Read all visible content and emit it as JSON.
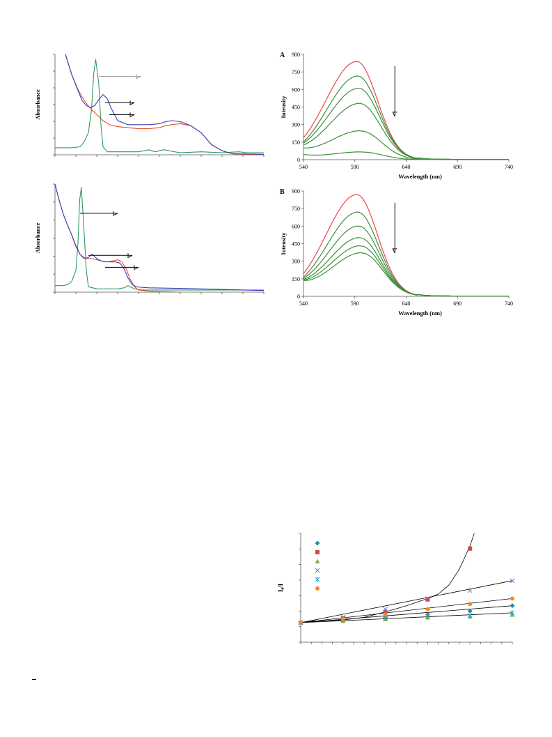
{
  "chart_data": [
    {
      "id": "uv1",
      "type": "line",
      "ylabel": "Absorbance",
      "xlim": [
        0,
        100
      ],
      "ylim": [
        0,
        100
      ],
      "series": [
        {
          "color": "#2e9a62",
          "x": [
            0,
            8,
            12,
            14,
            16,
            17.5,
            18.5,
            19.5,
            21,
            22,
            23,
            25,
            30,
            40,
            45,
            48,
            52,
            60,
            70,
            80,
            88,
            92,
            100
          ],
          "y": [
            7,
            7,
            8,
            13,
            22,
            45,
            80,
            95,
            70,
            30,
            8,
            3,
            3,
            3,
            5,
            3,
            5,
            2,
            3,
            2,
            3,
            2,
            2
          ]
        },
        {
          "color": "#e8502a",
          "x": [
            5,
            8,
            11,
            14,
            17,
            20,
            23,
            26,
            30,
            35,
            40,
            45,
            50,
            53,
            56,
            60,
            65,
            70,
            75,
            80,
            85,
            90,
            100
          ],
          "y": [
            100,
            80,
            65,
            54,
            46,
            40,
            34,
            30,
            28,
            27,
            26,
            26,
            27,
            29,
            30,
            31,
            29,
            22,
            10,
            4,
            1,
            0.5,
            0.3
          ]
        },
        {
          "color": "#3a3ab8",
          "x": [
            5,
            8,
            11,
            13,
            15,
            17,
            19,
            21,
            23,
            25,
            27,
            30,
            35,
            40,
            45,
            50,
            53,
            56,
            60,
            65,
            70,
            75,
            80,
            85,
            100
          ],
          "y": [
            100,
            80,
            64,
            54,
            49,
            47,
            49,
            55,
            60,
            56,
            46,
            34,
            30,
            30,
            30,
            31,
            33,
            34,
            33,
            29,
            22,
            10,
            4,
            1,
            0.5
          ]
        }
      ],
      "arrows": [
        {
          "color": "#999999",
          "from": [
            21,
            78
          ],
          "to": [
            41,
            78
          ]
        },
        {
          "color": "#000000",
          "from": [
            24,
            52
          ],
          "to": [
            38,
            52
          ]
        },
        {
          "color": "#000000",
          "from": [
            26,
            40
          ],
          "to": [
            38,
            40
          ]
        }
      ]
    },
    {
      "id": "uv2",
      "type": "line",
      "ylabel": "Absorbance",
      "xlim": [
        0,
        100
      ],
      "ylim": [
        0,
        100
      ],
      "series": [
        {
          "color": "#2e9a62",
          "x": [
            0,
            4,
            6,
            8,
            10,
            11,
            11.8,
            12.6,
            13.5,
            15,
            16,
            20,
            25,
            30,
            33,
            35,
            38,
            42,
            50,
            60,
            70,
            80,
            100
          ],
          "y": [
            6,
            6,
            7,
            10,
            20,
            45,
            85,
            97,
            70,
            20,
            5,
            3,
            3,
            3,
            4,
            6,
            3,
            2,
            2,
            2,
            2,
            2,
            2
          ]
        },
        {
          "color": "#e8502a",
          "x": [
            0,
            2,
            4,
            6,
            8,
            10,
            12,
            14,
            16,
            18,
            20,
            22,
            25,
            28,
            30,
            32,
            34,
            36,
            38,
            40,
            45,
            50,
            55,
            60
          ],
          "y": [
            100,
            85,
            72,
            62,
            53,
            42,
            35,
            32,
            31,
            31,
            30,
            29,
            28,
            29,
            30,
            28,
            22,
            12,
            5,
            2,
            1,
            0.5,
            0.3,
            0
          ]
        },
        {
          "color": "#3a3ab8",
          "x": [
            0,
            2,
            4,
            6,
            8,
            10,
            12,
            14,
            16,
            17,
            18,
            19,
            20,
            22,
            24,
            27,
            29,
            31,
            33,
            35,
            37,
            39,
            41,
            45,
            50,
            60,
            70,
            80,
            90,
            100
          ],
          "y": [
            100,
            85,
            72,
            62,
            53,
            43,
            35,
            31,
            32,
            34,
            35,
            33,
            31,
            29,
            28,
            28,
            28,
            27,
            22,
            13,
            7,
            5,
            4.5,
            4,
            3.8,
            3.5,
            3,
            2.5,
            2,
            1.5
          ]
        }
      ],
      "arrows": [
        {
          "color": "#000000",
          "from": [
            12,
            73
          ],
          "to": [
            30,
            73
          ]
        },
        {
          "color": "#000000",
          "from": [
            16,
            34
          ],
          "to": [
            37,
            34
          ]
        },
        {
          "color": "#000000",
          "from": [
            24,
            23
          ],
          "to": [
            40,
            23
          ]
        }
      ]
    },
    {
      "id": "fluorA",
      "type": "line",
      "panel_letter": "A",
      "xlabel": "Wavelength (nm)",
      "ylabel": "Intensity",
      "xlim": [
        540,
        740
      ],
      "ylim": [
        0,
        900
      ],
      "xticks": [
        "540",
        "590",
        "640",
        "690",
        "740"
      ],
      "yticks": [
        "0",
        "150",
        "300",
        "450",
        "600",
        "750",
        "900"
      ],
      "peak_wavelengths": [
        592,
        593,
        594,
        595,
        596,
        597
      ],
      "series": [
        {
          "color": "#f04545",
          "peak": 840,
          "start": 170
        },
        {
          "color": "#3c8e3c",
          "peak": 715,
          "start": 150
        },
        {
          "color": "#3c8e3c",
          "peak": 610,
          "start": 140
        },
        {
          "color": "#3c8e3c",
          "peak": 480,
          "start": 125
        },
        {
          "color": "#3c8e3c",
          "peak": 245,
          "start": 100
        },
        {
          "color": "#3c8e3c",
          "peak": 65,
          "start": 45
        }
      ],
      "arrow": {
        "x": 629,
        "y_top": 800,
        "y_bottom": 370
      }
    },
    {
      "id": "fluorB",
      "type": "line",
      "panel_letter": "B",
      "xlabel": "Wavelength (nm)",
      "ylabel": "Intensity",
      "xlim": [
        540,
        740
      ],
      "ylim": [
        0,
        900
      ],
      "xticks": [
        "540",
        "590",
        "640",
        "690",
        "740"
      ],
      "yticks": [
        "0",
        "150",
        "300",
        "450",
        "600",
        "750",
        "900"
      ],
      "peak_wavelengths": [
        592,
        593,
        594,
        595,
        596,
        597
      ],
      "series": [
        {
          "color": "#f04545",
          "peak": 870,
          "start": 185
        },
        {
          "color": "#3c8e3c",
          "peak": 720,
          "start": 165
        },
        {
          "color": "#3c8e3c",
          "peak": 600,
          "start": 155
        },
        {
          "color": "#3c8e3c",
          "peak": 500,
          "start": 145
        },
        {
          "color": "#3c8e3c",
          "peak": 430,
          "start": 140
        },
        {
          "color": "#3c8e3c",
          "peak": 370,
          "start": 135
        }
      ],
      "arrow": {
        "x": 629,
        "y_top": 800,
        "y_bottom": 370
      }
    },
    {
      "id": "stern-volmer",
      "type": "scatter",
      "ylabel": "I₀/I",
      "xlim": [
        0,
        100
      ],
      "ylim": [
        0,
        100
      ],
      "legend_placement": "top-left",
      "series": [
        {
          "color": "#1f8fa6",
          "marker": "diamond",
          "x": [
            0,
            20,
            40,
            60,
            80,
            100
          ],
          "y": [
            0,
            3,
            6,
            9,
            13,
            19
          ]
        },
        {
          "color": "#d04a3a",
          "marker": "square",
          "x": [
            0,
            20,
            40,
            60,
            80
          ],
          "y": [
            0,
            5,
            12,
            26,
            83
          ]
        },
        {
          "color": "#78b24a",
          "marker": "triangle",
          "x": [
            0,
            20,
            40,
            60,
            80,
            100
          ],
          "y": [
            0,
            2,
            4,
            6,
            7,
            9
          ]
        },
        {
          "color": "#7a6fc8",
          "marker": "x",
          "x": [
            0,
            20,
            40,
            60,
            80,
            100
          ],
          "y": [
            0,
            6,
            15,
            27,
            36,
            47
          ]
        },
        {
          "color": "#2aa7d6",
          "marker": "star",
          "x": [
            0,
            20,
            40,
            60,
            80,
            100
          ],
          "y": [
            0,
            3,
            5,
            7,
            8,
            11
          ]
        },
        {
          "color": "#f08a2a",
          "marker": "circle",
          "x": [
            0,
            20,
            40,
            60,
            80,
            100
          ],
          "y": [
            0,
            4,
            9,
            15,
            21,
            27
          ]
        }
      ],
      "fits": [
        {
          "color": "#000000",
          "x": [
            0,
            100
          ],
          "y": [
            0,
            19
          ]
        },
        {
          "color": "#000000",
          "x": [
            0,
            100
          ],
          "y": [
            0,
            11
          ]
        },
        {
          "color": "#000000",
          "x": [
            0,
            100
          ],
          "y": [
            0,
            47
          ]
        },
        {
          "color": "#000000",
          "x": [
            0,
            100
          ],
          "y": [
            0,
            27
          ]
        },
        {
          "color": "#000000",
          "x": [
            0,
            5,
            10,
            20,
            30,
            40,
            50,
            60,
            65,
            70,
            75,
            80,
            82
          ],
          "y": [
            0,
            2,
            2,
            3,
            6,
            12,
            19,
            27,
            32,
            42,
            60,
            86,
            100
          ]
        }
      ]
    }
  ],
  "labels": {
    "uv1_ylabel": "Absorbance",
    "uv2_ylabel": "Absorbance",
    "fluorA_letter": "A",
    "fluorB_letter": "B",
    "fluor_xlabel": "Wavelength (nm)",
    "fluor_ylabel": "Intensity",
    "sv_ylabel": "I₀/I"
  }
}
